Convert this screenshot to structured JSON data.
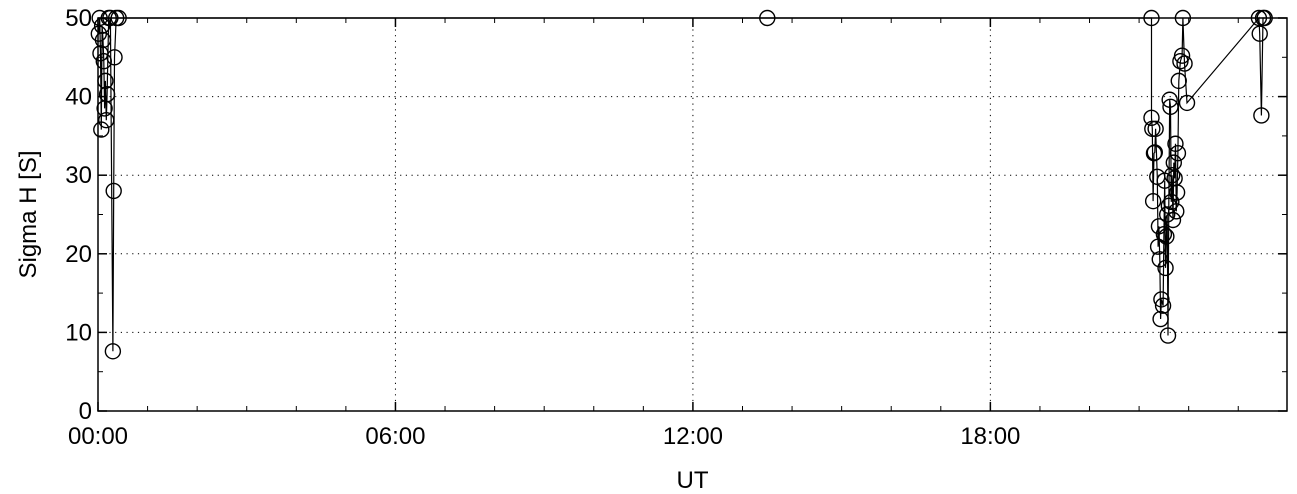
{
  "chart_data": {
    "type": "line",
    "title": "",
    "xlabel": "UT",
    "ylabel": "Sigma H [S]",
    "xlim": [
      "00:00",
      "23:59"
    ],
    "ylim": [
      0,
      50
    ],
    "x_ticks": [
      "00:00",
      "06:00",
      "12:00",
      "18:00"
    ],
    "y_ticks": [
      "0",
      "10",
      "20",
      "30",
      "40",
      "50"
    ],
    "grid": true,
    "legend": "none",
    "marker": "open-circle",
    "line_color": "#000000",
    "series": [
      {
        "x": [
          "00:01",
          "00:02",
          "00:03",
          "00:04",
          "00:05",
          "00:06",
          "00:07",
          "00:08",
          "00:09",
          "00:10",
          "00:11",
          "00:13",
          "00:15",
          "00:18",
          "00:19",
          "00:20",
          "00:22",
          "00:25",
          "13:30",
          "21:15",
          "21:15",
          "21:16",
          "21:17",
          "21:18",
          "21:19",
          "21:20",
          "21:22",
          "21:23",
          "21:24",
          "21:25",
          "21:26",
          "21:27",
          "21:29",
          "21:30",
          "21:31",
          "21:32",
          "21:33",
          "21:34",
          "21:35",
          "21:36",
          "21:37",
          "21:38",
          "21:39",
          "21:40",
          "21:41",
          "21:42",
          "21:43",
          "21:44",
          "21:45",
          "21:46",
          "21:47",
          "21:48",
          "21:50",
          "21:52",
          "21:53",
          "21:55",
          "21:58",
          "23:25",
          "23:26",
          "23:28",
          "23:30",
          "23:32"
        ],
        "values": [
          48,
          50,
          45.5,
          35.8,
          49,
          47.2,
          44.5,
          38.5,
          42,
          37,
          40.3,
          50,
          50,
          7.6,
          28,
          45,
          50,
          50,
          50,
          50,
          37.3,
          35.9,
          26.7,
          32.8,
          32.9,
          35.9,
          29.8,
          20.9,
          23.5,
          19.3,
          11.7,
          14.2,
          13.4,
          22.5,
          29.3,
          18.2,
          22.2,
          25,
          9.6,
          26.1,
          39.6,
          38.7,
          26.6,
          30,
          24.3,
          31.6,
          29.6,
          34,
          25.4,
          27.8,
          32.8,
          42,
          44.5,
          45.2,
          50,
          44.2,
          39.2,
          50,
          48,
          37.6,
          50,
          50
        ]
      }
    ]
  }
}
